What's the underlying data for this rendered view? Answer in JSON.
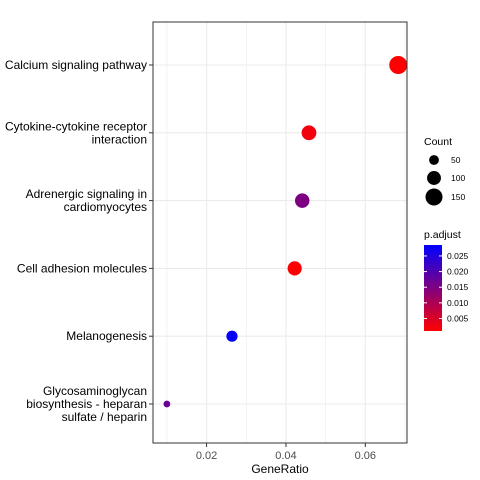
{
  "chart_data": {
    "type": "scatter",
    "title": "",
    "xlabel": "GeneRatio",
    "ylabel": "",
    "xlim": [
      0.0065,
      0.0705
    ],
    "x_ticks": [
      0.02,
      0.04,
      0.06
    ],
    "x_tick_labels": [
      "0.02",
      "0.04",
      "0.06"
    ],
    "grid": true,
    "legend_position": "right",
    "categories": [
      "Calcium signaling pathway",
      "Cytokine-cytokine receptor interaction",
      "Adrenergic signaling in cardiomyocytes",
      "Cell adhesion molecules",
      "Melanogenesis",
      "Glycosaminoglycan biosynthesis - heparan sulfate / heparin"
    ],
    "category_label_lines": [
      [
        "Calcium signaling pathway"
      ],
      [
        "Cytokine-cytokine receptor",
        "interaction"
      ],
      [
        "Adrenergic signaling in",
        "cardiomyocytes"
      ],
      [
        "Cell adhesion molecules"
      ],
      [
        "Melanogenesis"
      ],
      [
        "Glycosaminoglycan",
        "biosynthesis - heparan",
        "sulfate / heparin"
      ]
    ],
    "points": [
      {
        "term": "Calcium signaling pathway",
        "gene_ratio": 0.0683,
        "count": 168,
        "p_adjust": 0.001
      },
      {
        "term": "Cytokine-cytokine receptor interaction",
        "gene_ratio": 0.0458,
        "count": 113,
        "p_adjust": 0.0025
      },
      {
        "term": "Adrenergic signaling in cardiomyocytes",
        "gene_ratio": 0.0441,
        "count": 108,
        "p_adjust": 0.015
      },
      {
        "term": "Cell adhesion molecules",
        "gene_ratio": 0.0422,
        "count": 104,
        "p_adjust": 0.001
      },
      {
        "term": "Melanogenesis",
        "gene_ratio": 0.0264,
        "count": 65,
        "p_adjust": 0.028
      },
      {
        "term": "Glycosaminoglycan biosynthesis - heparan sulfate / heparin",
        "gene_ratio": 0.01,
        "count": 24,
        "p_adjust": 0.017
      }
    ],
    "size_legend": {
      "title": "Count",
      "values": [
        50,
        100,
        150
      ],
      "labels": [
        "50",
        "100",
        "150"
      ]
    },
    "color_legend": {
      "title": "p.adjust",
      "min": 0.001,
      "max": 0.0285,
      "ticks": [
        0.025,
        0.02,
        0.015,
        0.01,
        0.005
      ],
      "tick_labels": [
        "0.025",
        "0.020",
        "0.015",
        "0.010",
        "0.005"
      ],
      "low_color": "#ff0000",
      "high_color": "#0000ff"
    },
    "colors": {
      "panel_border": "#333333",
      "grid": "#ebebeb",
      "point_default": "#000000"
    }
  }
}
